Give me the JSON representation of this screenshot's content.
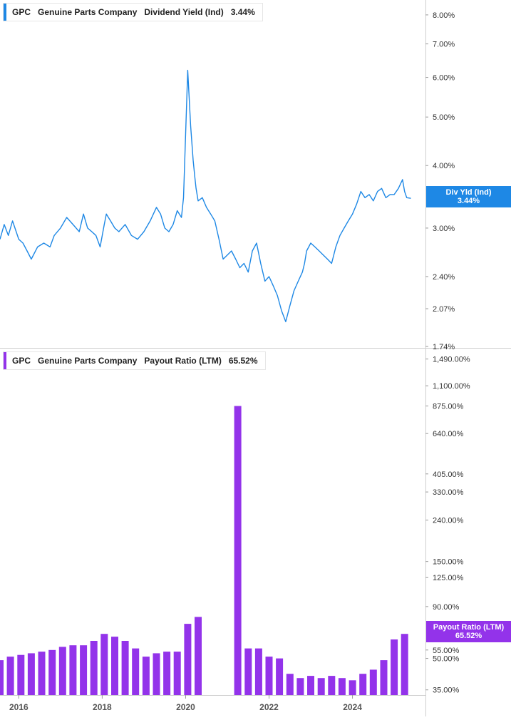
{
  "chart_data": [
    {
      "type": "line",
      "ticker": "GPC",
      "company": "Genuine Parts Company",
      "metric": "Dividend Yield (Ind)",
      "current_value": "3.44%",
      "flag_label": "Div Yld (Ind)",
      "color": "#1e88e5",
      "y_scale": "log",
      "ylim": [
        1.74,
        8.4
      ],
      "y_ticks": [
        "8.00%",
        "7.00%",
        "6.00%",
        "5.00%",
        "4.00%",
        "3.00%",
        "2.40%",
        "2.07%",
        "1.74%"
      ],
      "y_tick_values": [
        8.0,
        7.0,
        6.0,
        5.0,
        4.0,
        3.0,
        2.4,
        2.07,
        1.74
      ],
      "x_range": [
        2015.55,
        2025.75
      ],
      "series": [
        {
          "x": [
            2015.55,
            2015.65,
            2015.75,
            2015.85,
            2016.0,
            2016.1,
            2016.2,
            2016.3,
            2016.45,
            2016.6,
            2016.75,
            2016.85,
            2017.0,
            2017.15,
            2017.3,
            2017.45,
            2017.55,
            2017.65,
            2017.75,
            2017.85,
            2017.95,
            2018.05,
            2018.1,
            2018.2,
            2018.3,
            2018.4,
            2018.55,
            2018.7,
            2018.85,
            2019.0,
            2019.15,
            2019.3,
            2019.4,
            2019.5,
            2019.6,
            2019.7,
            2019.8,
            2019.9,
            2019.95,
            2020.05,
            2020.12,
            2020.18,
            2020.22,
            2020.25,
            2020.3,
            2020.4,
            2020.5,
            2020.6,
            2020.7,
            2020.8,
            2020.9,
            2021.0,
            2021.1,
            2021.2,
            2021.3,
            2021.4,
            2021.5,
            2021.6,
            2021.7,
            2021.8,
            2021.9,
            2022.0,
            2022.1,
            2022.2,
            2022.3,
            2022.4,
            2022.5,
            2022.6,
            2022.7,
            2022.8,
            2022.85,
            2022.9,
            2023.0,
            2023.1,
            2023.2,
            2023.3,
            2023.4,
            2023.5,
            2023.6,
            2023.7,
            2023.8,
            2023.9,
            2024.0,
            2024.1,
            2024.2,
            2024.3,
            2024.4,
            2024.5,
            2024.6,
            2024.7,
            2024.8,
            2024.9,
            2025.0,
            2025.1,
            2025.2,
            2025.25,
            2025.3,
            2025.4
          ],
          "values": [
            2.85,
            3.05,
            2.9,
            3.1,
            2.85,
            2.8,
            2.7,
            2.6,
            2.75,
            2.8,
            2.75,
            2.9,
            3.0,
            3.15,
            3.05,
            2.95,
            3.2,
            3.0,
            2.95,
            2.9,
            2.75,
            3.05,
            3.2,
            3.1,
            3.0,
            2.95,
            3.05,
            2.9,
            2.85,
            2.95,
            3.1,
            3.3,
            3.2,
            3.0,
            2.95,
            3.05,
            3.25,
            3.15,
            3.45,
            6.2,
            4.8,
            4.1,
            3.8,
            3.6,
            3.4,
            3.45,
            3.3,
            3.2,
            3.1,
            2.85,
            2.6,
            2.65,
            2.7,
            2.6,
            2.5,
            2.55,
            2.45,
            2.7,
            2.8,
            2.55,
            2.35,
            2.4,
            2.3,
            2.2,
            2.05,
            1.95,
            2.1,
            2.25,
            2.35,
            2.45,
            2.55,
            2.7,
            2.8,
            2.75,
            2.7,
            2.65,
            2.6,
            2.55,
            2.75,
            2.9,
            3.0,
            3.1,
            3.2,
            3.35,
            3.55,
            3.45,
            3.5,
            3.4,
            3.55,
            3.6,
            3.45,
            3.5,
            3.5,
            3.6,
            3.75,
            3.55,
            3.45,
            3.44
          ]
        }
      ]
    },
    {
      "type": "bar",
      "ticker": "GPC",
      "company": "Genuine Parts Company",
      "metric": "Payout Ratio (LTM)",
      "current_value": "65.52%",
      "flag_label": "Payout Ratio (LTM)",
      "color": "#9333ea",
      "y_scale": "log",
      "ylim": [
        33,
        1650
      ],
      "y_ticks": [
        "1,490.00%",
        "1,100.00%",
        "875.00%",
        "640.00%",
        "405.00%",
        "330.00%",
        "240.00%",
        "150.00%",
        "125.00%",
        "90.00%",
        "55.00%",
        "50.00%",
        "35.00%"
      ],
      "y_tick_values": [
        1490,
        1100,
        875,
        640,
        405,
        330,
        240,
        150,
        125,
        90,
        55,
        50,
        35
      ],
      "x_range": [
        2015.55,
        2025.75
      ],
      "x_ticks": [
        "2016",
        "2018",
        "2020",
        "2022",
        "2024"
      ],
      "x_tick_values": [
        2016,
        2018,
        2020,
        2022,
        2024
      ],
      "bars": {
        "x": [
          2015.55,
          2015.8,
          2016.05,
          2016.3,
          2016.55,
          2016.8,
          2017.05,
          2017.3,
          2017.55,
          2017.8,
          2018.05,
          2018.3,
          2018.55,
          2018.8,
          2019.05,
          2019.3,
          2019.55,
          2019.8,
          2020.05,
          2020.3,
          2021.25,
          2021.5,
          2021.75,
          2022.0,
          2022.25,
          2022.5,
          2022.75,
          2023.0,
          2023.25,
          2023.5,
          2023.75,
          2024.0,
          2024.25,
          2024.5,
          2024.75,
          2025.0,
          2025.25
        ],
        "values": [
          49,
          51,
          52,
          53,
          54,
          55,
          57,
          58,
          58,
          61,
          66,
          64,
          61,
          56,
          51,
          53,
          54,
          54,
          74,
          80,
          875,
          56,
          56,
          51,
          50,
          42,
          40,
          41,
          40,
          41,
          40,
          39,
          42,
          44,
          49,
          62,
          66
        ]
      }
    }
  ]
}
